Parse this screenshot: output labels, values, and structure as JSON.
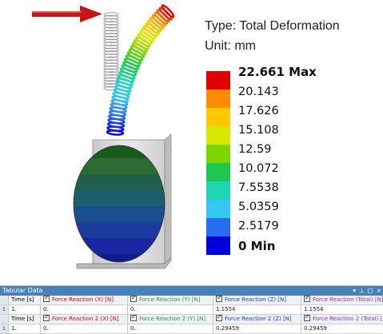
{
  "result": {
    "type_line": "Type: Total Deformation",
    "unit_line": "Unit: mm"
  },
  "legend": {
    "entries": [
      {
        "label": "22.661 Max",
        "color": "#e00000"
      },
      {
        "label": "20.143",
        "color": "#ff8c00"
      },
      {
        "label": "17.626",
        "color": "#ffc800"
      },
      {
        "label": "15.108",
        "color": "#d8e800"
      },
      {
        "label": "12.59",
        "color": "#7cd400"
      },
      {
        "label": "10.072",
        "color": "#1ec850"
      },
      {
        "label": "7.5538",
        "color": "#1ed6b4"
      },
      {
        "label": "5.0359",
        "color": "#33c6f2"
      },
      {
        "label": "2.5179",
        "color": "#2a6cf0"
      },
      {
        "label": "0 Min",
        "color": "#0000d8"
      }
    ]
  },
  "tabular": {
    "title": "Tabular Data",
    "controls": {
      "dropdown": "▾",
      "pin": "⊥",
      "restore": "□",
      "close": "×"
    },
    "header1": {
      "time": "Time [s]",
      "fx": "Force Reaction (X) [N]",
      "fy": "Force Reaction (Y) [N]",
      "fz": "Force Reaction (Z) [N]",
      "ftotal": "Force Reaction (Total) [N]"
    },
    "row1": {
      "num": "1",
      "time": "1.",
      "fx": "0.",
      "fy": "0.",
      "fz": "1.1554",
      "ftotal": "1.1554"
    },
    "header2": {
      "time": "Time [s]",
      "fx": "Force Reaction 2 (X) [N]",
      "fy": "Force Reaction 2 (Y) [N]",
      "fz": "Force Reaction 2 (Z) [N]",
      "ftotal": "Force Reaction 2 (Total) [N]"
    },
    "row2": {
      "num": "1",
      "time": "1.",
      "fx": "0.",
      "fy": "0.",
      "fz": "0.29459",
      "ftotal": "0.29459"
    }
  }
}
